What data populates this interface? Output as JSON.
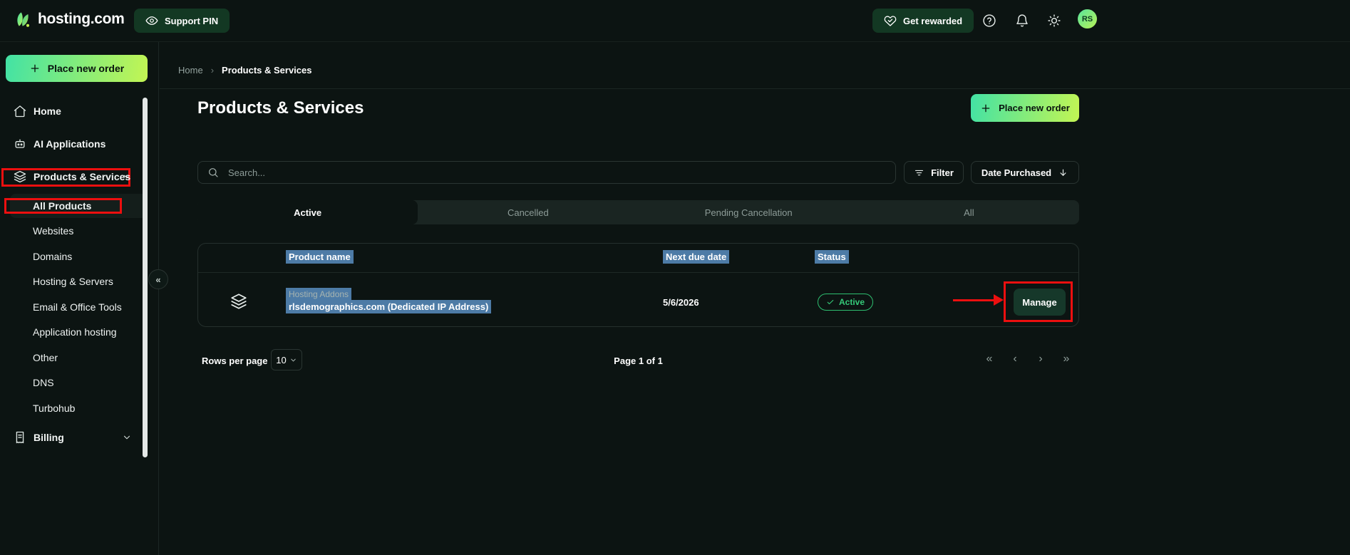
{
  "header": {
    "brand": "hosting.com",
    "support_pin_label": "Support PIN",
    "get_rewarded_label": "Get rewarded",
    "avatar_initials": "RS",
    "icons": [
      "eye-icon",
      "heart-hands-icon",
      "help-icon",
      "bell-icon",
      "sun-icon"
    ]
  },
  "sidebar": {
    "place_new_order_label": "Place new order",
    "collapse_glyph": "«",
    "items": [
      {
        "label": "Home",
        "icon": "home-icon",
        "type": "main"
      },
      {
        "label": "AI Applications",
        "icon": "ai-icon",
        "type": "main"
      },
      {
        "label": "Products & Services",
        "icon": "layers-icon",
        "type": "main",
        "chevron": true,
        "annotated": true
      },
      {
        "label": "All Products",
        "type": "sub",
        "selected": true,
        "annotated": true
      },
      {
        "label": "Websites",
        "type": "sub"
      },
      {
        "label": "Domains",
        "type": "sub"
      },
      {
        "label": "Hosting & Servers",
        "type": "sub"
      },
      {
        "label": "Email & Office Tools",
        "type": "sub"
      },
      {
        "label": "Application hosting",
        "type": "sub"
      },
      {
        "label": "Other",
        "type": "sub"
      },
      {
        "label": "DNS",
        "type": "sub"
      },
      {
        "label": "Turbohub",
        "type": "sub"
      },
      {
        "label": "Billing",
        "icon": "billing-icon",
        "type": "main",
        "chevron": true
      }
    ]
  },
  "breadcrumb": {
    "items": [
      "Home",
      "Products & Services"
    ],
    "separator": "›"
  },
  "page": {
    "title": "Products & Services",
    "place_new_order_label": "Place new order",
    "search_placeholder": "Search...",
    "search_icon": "search-icon",
    "filter_label": "Filter",
    "filter_icon": "filter-lines-icon",
    "sort_label": "Date Purchased",
    "sort_icon": "arrow-down-icon",
    "tabs": [
      {
        "label": "Active",
        "active": true
      },
      {
        "label": "Cancelled",
        "active": false
      },
      {
        "label": "Pending Cancellation",
        "active": false
      },
      {
        "label": "All",
        "active": false
      }
    ]
  },
  "table": {
    "columns": [
      "Product name",
      "Next due date",
      "Status"
    ],
    "row": {
      "type_icon": "layers-icon",
      "category": "Hosting Addons",
      "name": "rlsdemographics.com (Dedicated IP Address)",
      "next_due_date": "5/6/2026",
      "status": "Active",
      "status_icon": "check-icon",
      "action_label": "Manage"
    }
  },
  "footer": {
    "rows_per_page_label": "Rows per page",
    "rows_per_page_value": "10",
    "page_info": "Page 1 of 1",
    "pager_glyphs": [
      "«",
      "‹",
      "›",
      "»"
    ]
  },
  "colors": {
    "background": "#0c1412",
    "dark_green_button": "#133823",
    "manage_button_green": "#16382a",
    "gradient_start": "#42e2a5",
    "gradient_end": "#c3f553",
    "active_status_green": "#2ebf70",
    "selection_highlight_blue": "#4d7ba6",
    "annotation_red": "#ec0f0f",
    "text_secondary": "#93a29e"
  }
}
